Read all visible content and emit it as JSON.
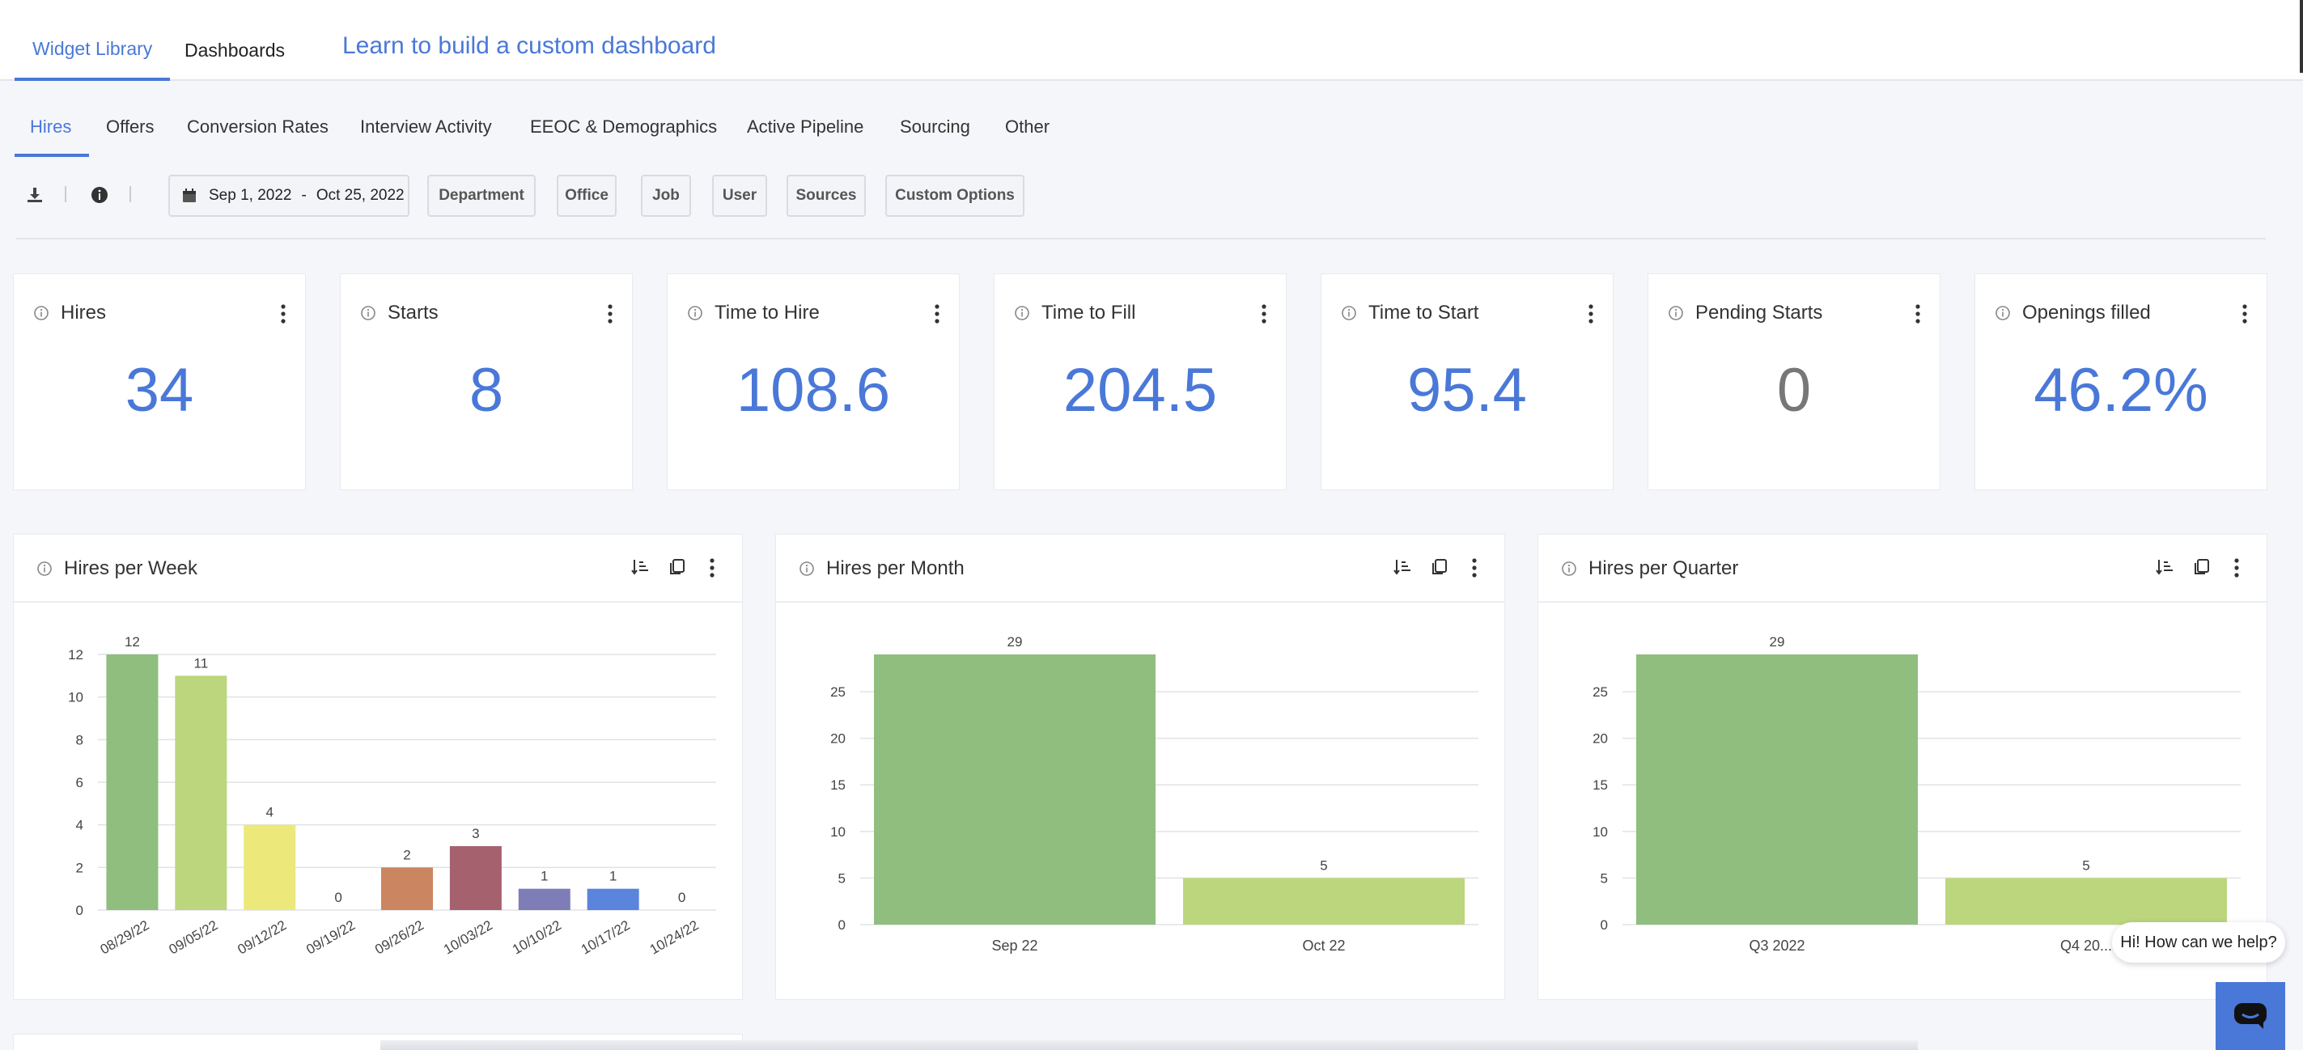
{
  "top_tabs": [
    {
      "label": "Widget Library",
      "active": true
    },
    {
      "label": "Dashboards",
      "active": false
    }
  ],
  "learn_link": "Learn to build a custom dashboard",
  "sub_tabs": [
    "Hires",
    "Offers",
    "Conversion Rates",
    "Interview Activity",
    "EEOC & Demographics",
    "Active Pipeline",
    "Sourcing",
    "Other"
  ],
  "toolbar": {
    "date_start": "Sep 1, 2022",
    "date_sep": "-",
    "date_end": "Oct 25, 2022",
    "filters": [
      "Department",
      "Office",
      "Job",
      "User",
      "Sources",
      "Custom Options"
    ]
  },
  "kpis": [
    {
      "title": "Hires",
      "value": "34"
    },
    {
      "title": "Starts",
      "value": "8"
    },
    {
      "title": "Time to Hire",
      "value": "108.6"
    },
    {
      "title": "Time to Fill",
      "value": "204.5"
    },
    {
      "title": "Time to Start",
      "value": "95.4"
    },
    {
      "title": "Pending Starts",
      "value": "0"
    },
    {
      "title": "Openings filled",
      "value": "46.2%"
    }
  ],
  "chart_titles": [
    "Hires per Week",
    "Hires per Month",
    "Hires per Quarter"
  ],
  "chart_data": [
    {
      "type": "bar",
      "title": "Hires per Week",
      "categories": [
        "08/29/22",
        "09/05/22",
        "09/12/22",
        "09/19/22",
        "09/26/22",
        "10/03/22",
        "10/10/22",
        "10/17/22",
        "10/24/22"
      ],
      "values": [
        12,
        11,
        4,
        0,
        2,
        3,
        1,
        1,
        0
      ],
      "colors": [
        "#8fbe7f",
        "#bcd67e",
        "#ece87a",
        "#ece87a",
        "#cb8560",
        "#a6616f",
        "#7e7db8",
        "#5b84dc",
        "#5b84dc"
      ],
      "yticks": [
        0,
        2,
        4,
        6,
        8,
        10,
        12
      ],
      "ylim": [
        0,
        12
      ],
      "grid": true,
      "xlabel": "",
      "ylabel": ""
    },
    {
      "type": "bar",
      "title": "Hires per Month",
      "categories": [
        "Sep 22",
        "Oct 22"
      ],
      "values": [
        29,
        5
      ],
      "colors": [
        "#8fbe7f",
        "#bcd67e"
      ],
      "yticks": [
        0,
        5,
        10,
        15,
        20,
        25
      ],
      "ylim": [
        0,
        29
      ],
      "grid": true,
      "xlabel": "",
      "ylabel": ""
    },
    {
      "type": "bar",
      "title": "Hires per Quarter",
      "categories": [
        "Q3 2022",
        "Q4 20..."
      ],
      "values": [
        29,
        5
      ],
      "colors": [
        "#8fbe7f",
        "#bcd67e"
      ],
      "yticks": [
        0,
        5,
        10,
        15,
        20,
        25
      ],
      "ylim": [
        0,
        29
      ],
      "grid": true,
      "xlabel": "",
      "ylabel": ""
    }
  ],
  "help": {
    "bubble": "Hi! How can we help?"
  }
}
